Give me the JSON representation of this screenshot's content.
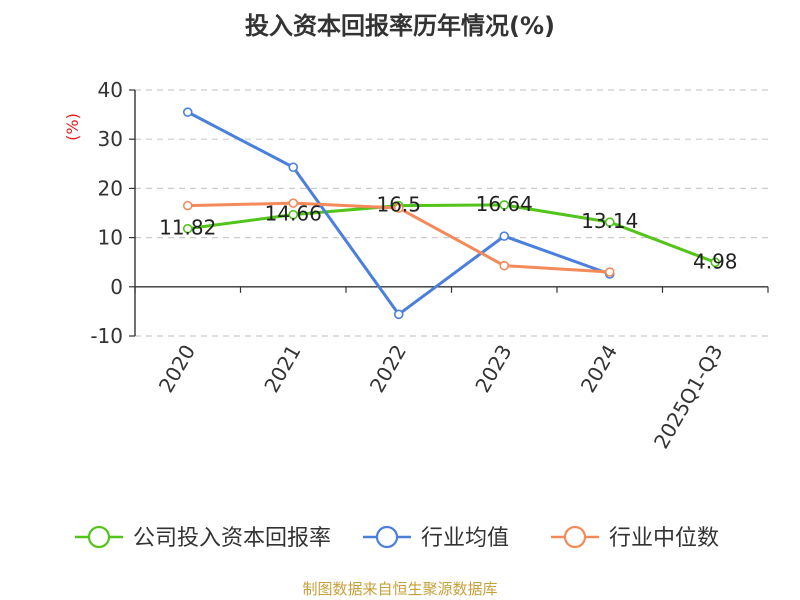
{
  "chart_data": {
    "type": "line",
    "title": "投入资本回报率历年情况(%)",
    "ylabel": "(%)",
    "xlabel": "",
    "ylim": [
      -10,
      40
    ],
    "yticks": [
      -10,
      0,
      10,
      20,
      30,
      40
    ],
    "grid": true,
    "legend_position": "bottom",
    "categories": [
      "2020",
      "2021",
      "2022",
      "2023",
      "2024",
      "2025Q1-Q3"
    ],
    "series": [
      {
        "name": "公司投入资本回报率",
        "color": "#52c41a",
        "values": [
          11.82,
          14.66,
          16.5,
          16.64,
          13.14,
          4.98
        ],
        "labels": [
          "11.82",
          "14.66",
          "16.5",
          "16.64",
          "13.14",
          "4.98"
        ]
      },
      {
        "name": "行业均值",
        "color": "#4a7fdb",
        "values": [
          35.5,
          24.3,
          -5.6,
          10.3,
          2.6,
          null
        ]
      },
      {
        "name": "行业中位数",
        "color": "#f4895a",
        "values": [
          16.5,
          17.0,
          16.0,
          4.3,
          3.0,
          null
        ]
      }
    ]
  },
  "footer": {
    "source": "制图数据来自恒生聚源数据库"
  }
}
